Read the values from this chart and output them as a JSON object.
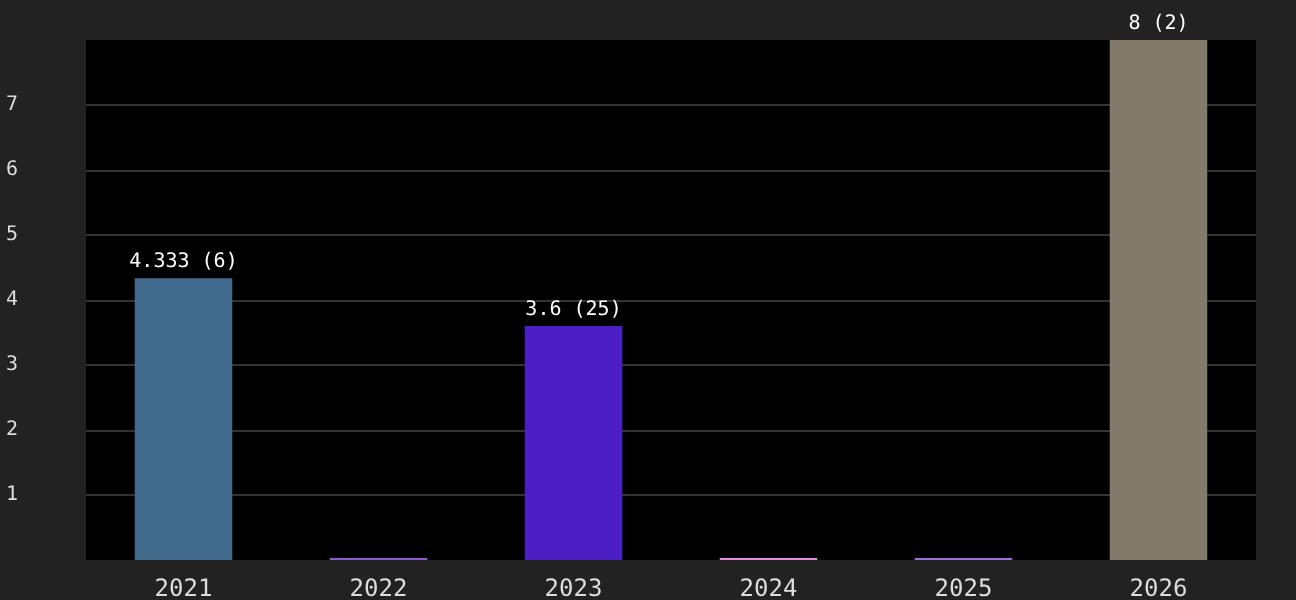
{
  "chart_data": {
    "type": "bar",
    "categories": [
      "2021",
      "2022",
      "2023",
      "2024",
      "2025",
      "2026"
    ],
    "values": [
      4.333,
      0,
      3.6,
      0,
      0,
      8
    ],
    "colors": [
      "#426a8c",
      "#8a5cd0",
      "#4b1fc4",
      "#e88ad8",
      "#a070e0",
      "#827a6a"
    ],
    "value_labels": [
      "4.333 (6)",
      null,
      "3.6 (25)",
      null,
      null,
      "8 (2)"
    ],
    "ylim": [
      0,
      8
    ],
    "yticks": [
      1,
      2,
      3,
      4,
      5,
      6,
      7
    ],
    "grid": "y"
  }
}
